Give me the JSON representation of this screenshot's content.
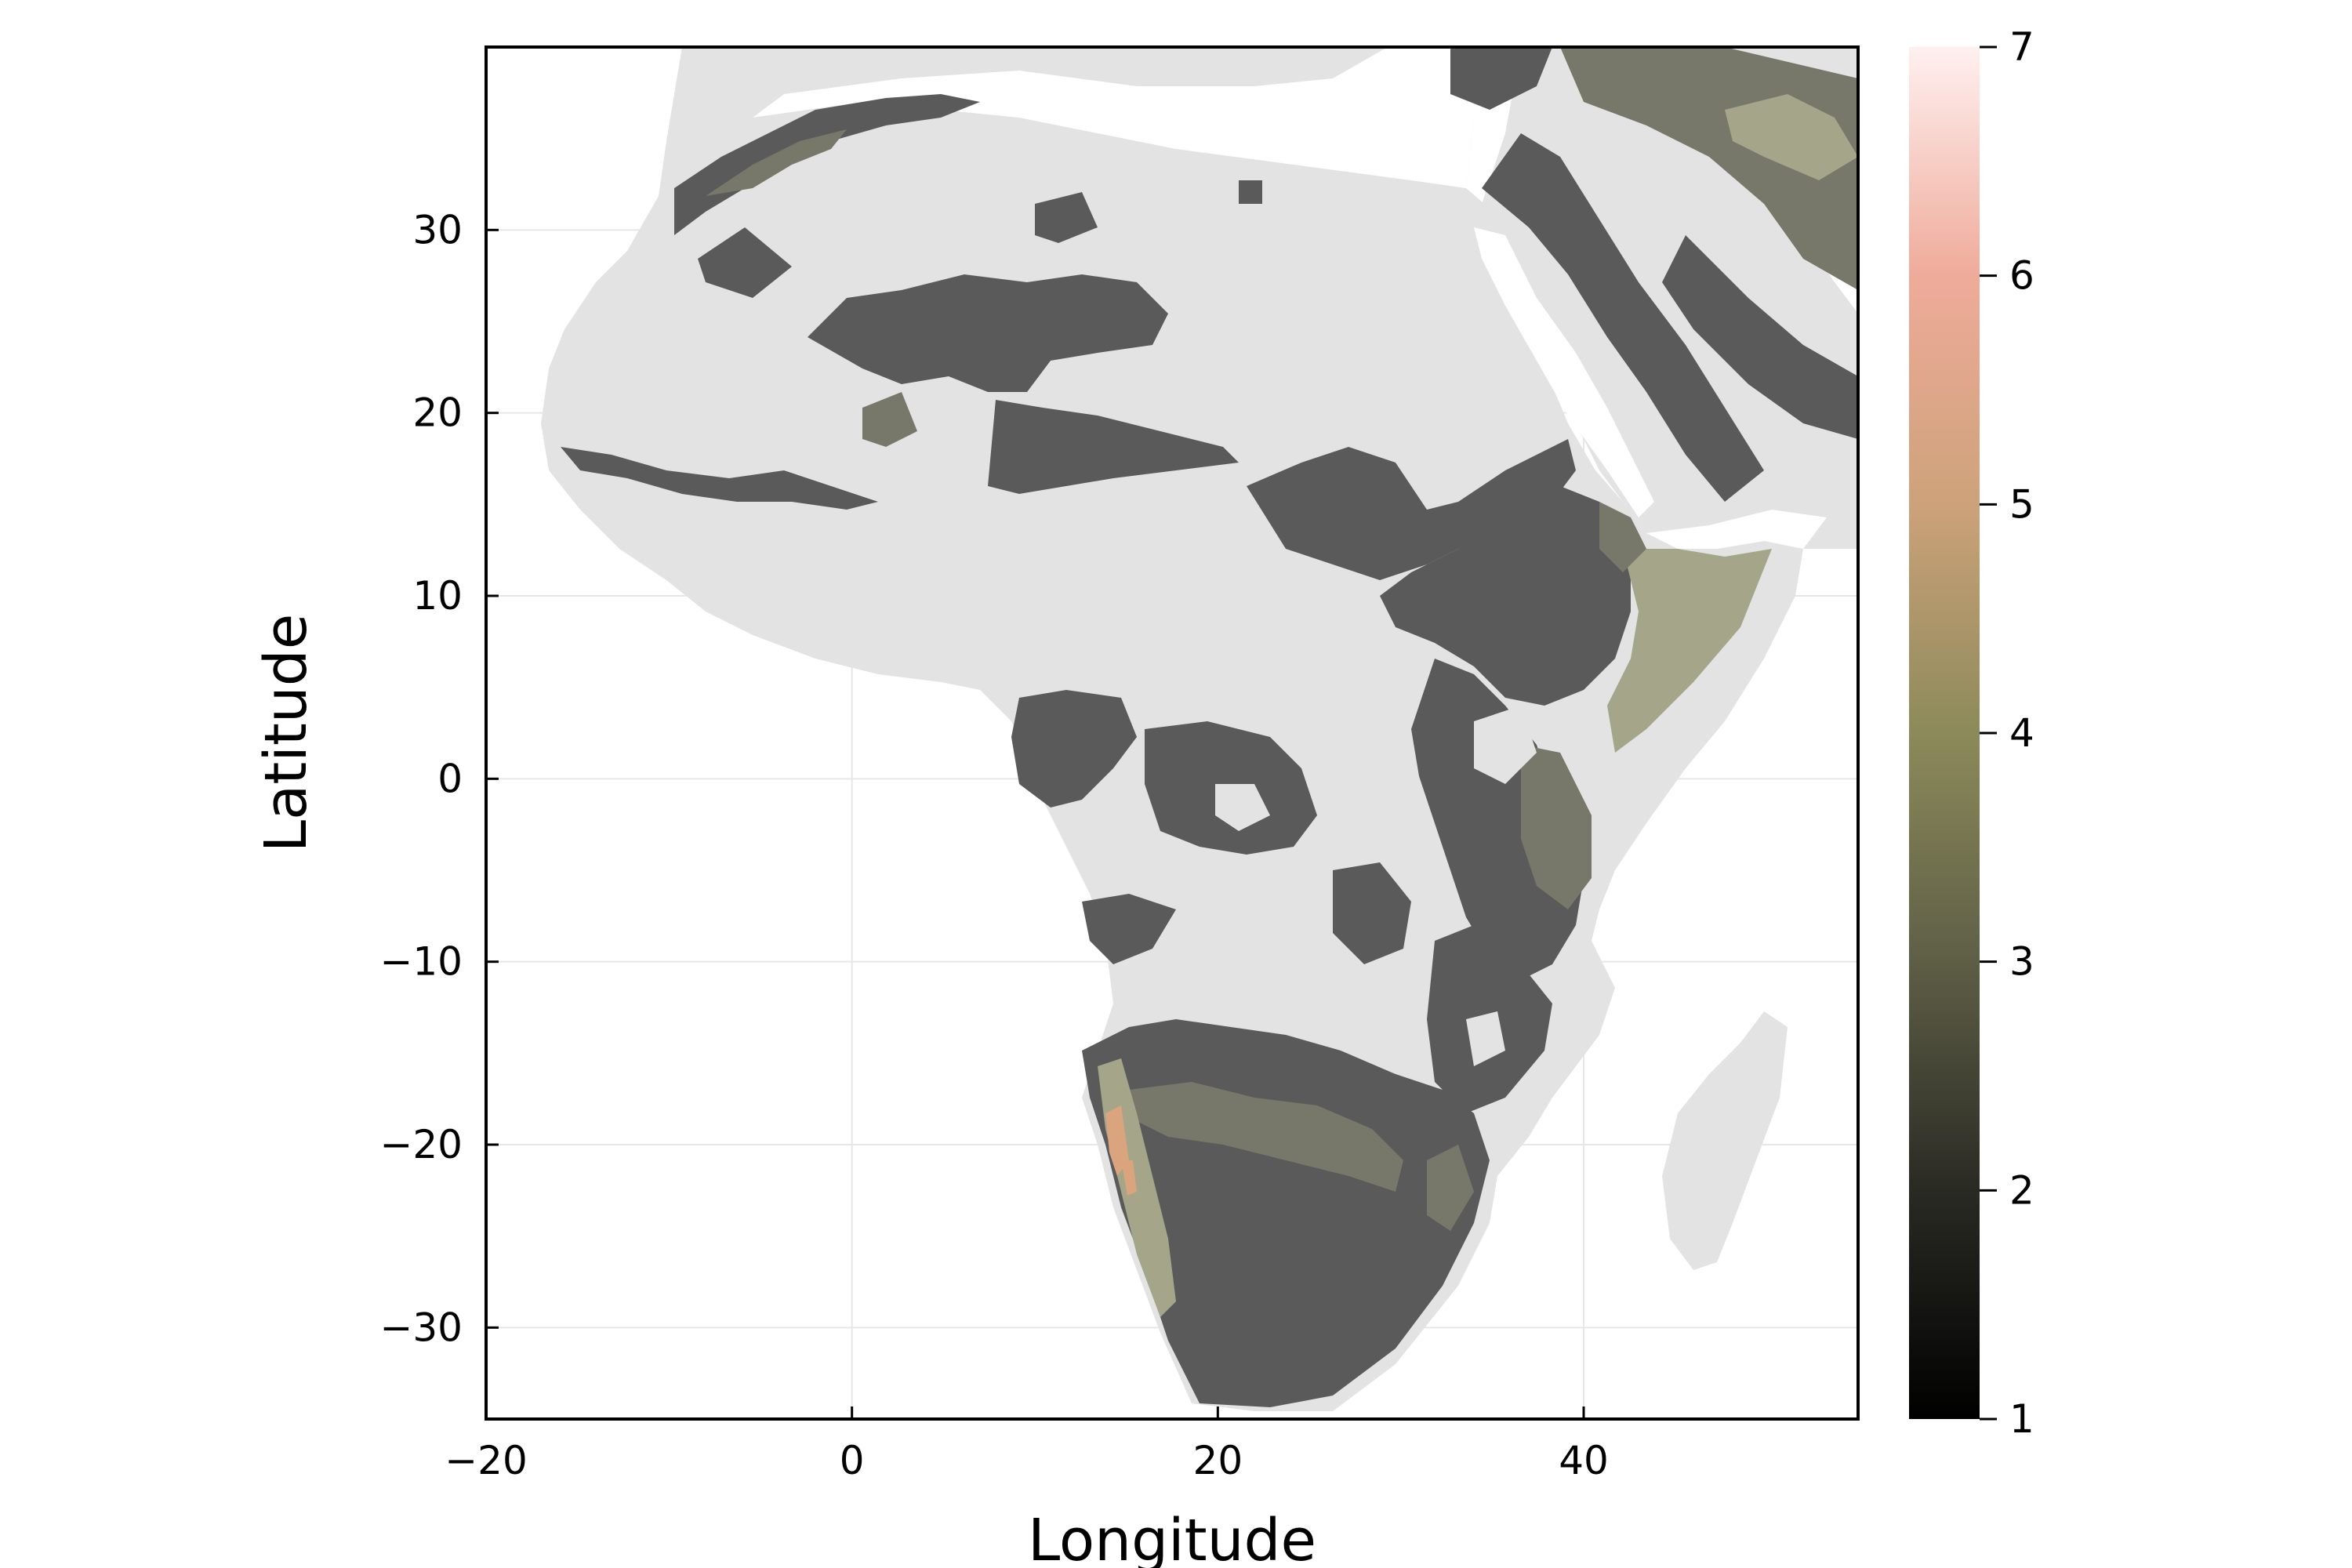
{
  "chart_data": {
    "type": "heatmap",
    "title": "",
    "xlabel": "Longitude",
    "ylabel": "Latitude",
    "xlim": [
      -20,
      55
    ],
    "ylim": [
      -35,
      40
    ],
    "grid": true,
    "x_ticks": [
      {
        "value": -20,
        "label": "−20"
      },
      {
        "value": 0,
        "label": "0"
      },
      {
        "value": 20,
        "label": "20"
      },
      {
        "value": 40,
        "label": "40"
      }
    ],
    "y_ticks": [
      {
        "value": 30,
        "label": "30"
      },
      {
        "value": 20,
        "label": "20"
      },
      {
        "value": 10,
        "label": "10"
      },
      {
        "value": 0,
        "label": "0"
      },
      {
        "value": -10,
        "label": "−10"
      },
      {
        "value": -20,
        "label": "−20"
      },
      {
        "value": -30,
        "label": "−30"
      }
    ],
    "colorbar": {
      "range": [
        1,
        7
      ],
      "ticks": [
        {
          "value": 1,
          "label": "1"
        },
        {
          "value": 2,
          "label": "2"
        },
        {
          "value": 3,
          "label": "3"
        },
        {
          "value": 4,
          "label": "4"
        },
        {
          "value": 5,
          "label": "5"
        },
        {
          "value": 6,
          "label": "6"
        },
        {
          "value": 7,
          "label": "7"
        }
      ],
      "colors": [
        "#000000",
        "#2a2a24",
        "#5e5e46",
        "#8c8a5a",
        "#cda27a",
        "#efab9a",
        "#fff0f0"
      ]
    },
    "colors": {
      "land": "#e3e3e3",
      "value_2": "#5a5a5a",
      "value_3": "#78786a",
      "value_4": "#a5a58a",
      "value_5": "#d9a47e"
    }
  }
}
